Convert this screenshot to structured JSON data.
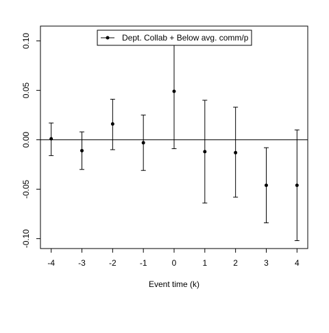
{
  "chart_data": {
    "type": "scatter",
    "title": "",
    "xlabel": "Event time (k)",
    "ylabel": "",
    "x": [
      -4,
      -3,
      -2,
      -1,
      0,
      1,
      2,
      3,
      4
    ],
    "xticks": [
      "-4",
      "-3",
      "-2",
      "-1",
      "0",
      "1",
      "2",
      "3",
      "4"
    ],
    "yticks": [
      "-0.10",
      "-0.05",
      "0.00",
      "0.05",
      "0.10"
    ],
    "ylim": [
      -0.11,
      0.115
    ],
    "xlim": [
      -4.35,
      4.35
    ],
    "reference_line_y": 0,
    "grid": false,
    "legend_position": "top-center",
    "series": [
      {
        "name": "Dept. Collab + Below avg. comm/p",
        "color": "#000000",
        "marker": "circle",
        "values": [
          0.001,
          -0.011,
          0.016,
          -0.003,
          0.049,
          -0.012,
          -0.013,
          -0.046,
          -0.046
        ],
        "ci_lower": [
          -0.016,
          -0.03,
          -0.01,
          -0.031,
          -0.009,
          -0.064,
          -0.058,
          -0.084,
          -0.102
        ],
        "ci_upper": [
          0.017,
          0.008,
          0.041,
          0.025,
          0.107,
          0.04,
          0.033,
          -0.008,
          0.01
        ]
      }
    ]
  }
}
